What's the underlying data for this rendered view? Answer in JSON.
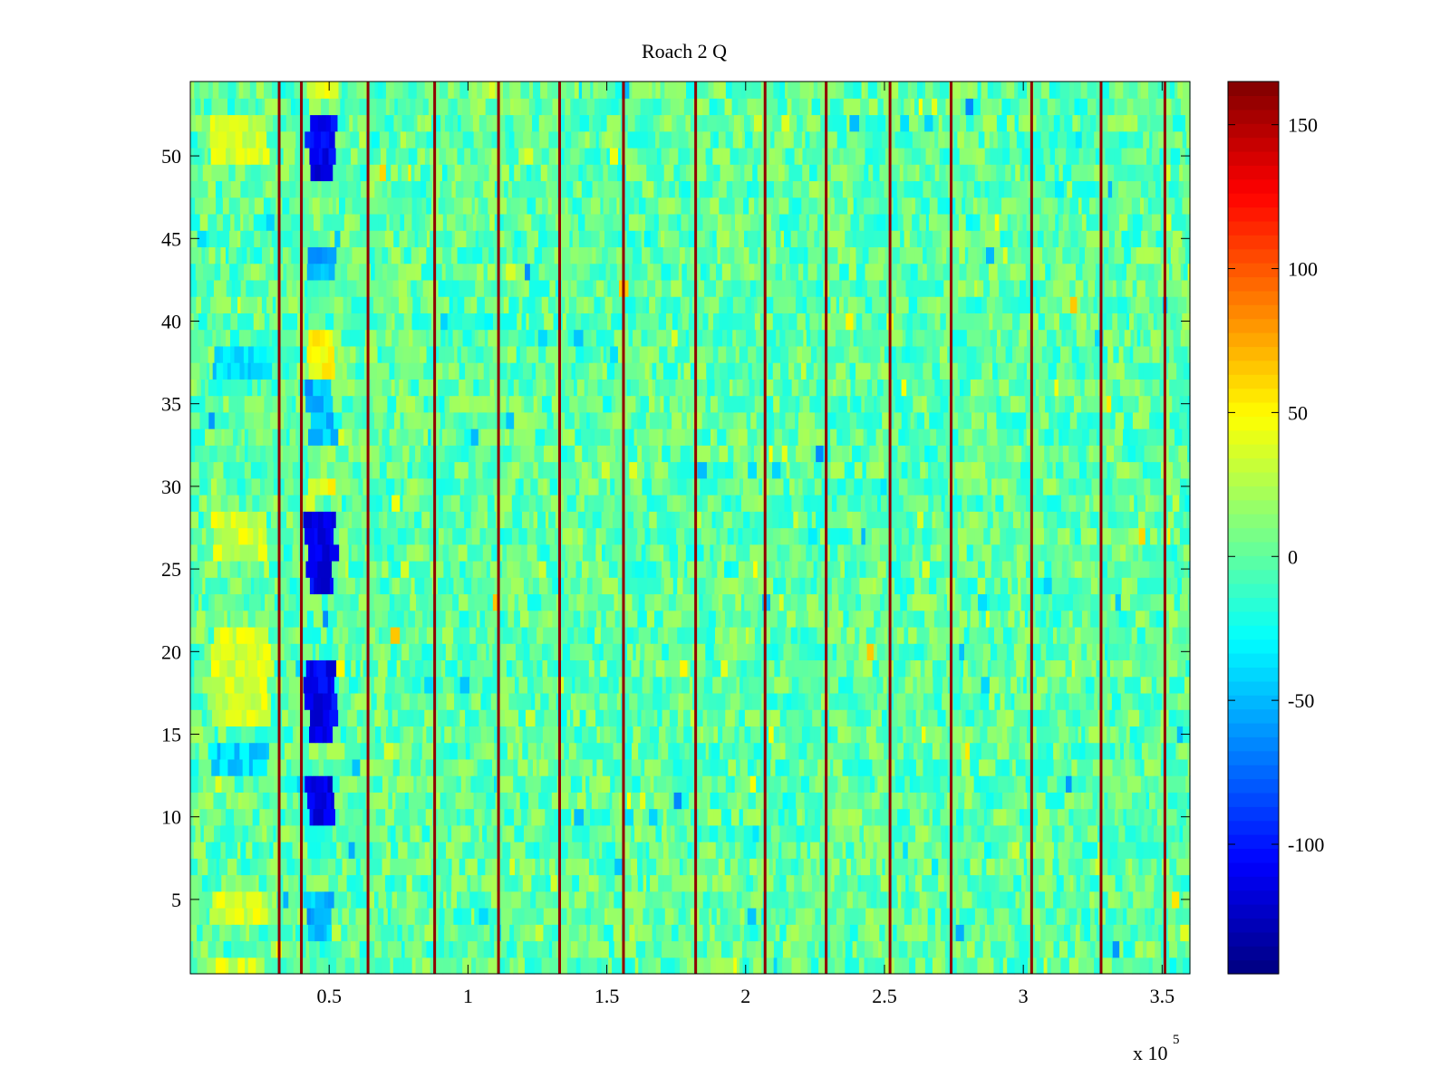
{
  "chart_data": {
    "type": "heatmap",
    "title": "Roach 2 Q",
    "xlabel": "",
    "ylabel": "",
    "x_exponent_label": "x 10",
    "x_exponent_power": "5",
    "xlim": [
      0,
      3.6
    ],
    "ylim": [
      0.5,
      54.5
    ],
    "rows": 54,
    "x_ticks": [
      0.5,
      1,
      1.5,
      2,
      2.5,
      3,
      3.5
    ],
    "x_tick_labels": [
      "0.5",
      "1",
      "1.5",
      "2",
      "2.5",
      "3",
      "3.5"
    ],
    "y_ticks": [
      5,
      10,
      15,
      20,
      25,
      30,
      35,
      40,
      45,
      50
    ],
    "y_tick_labels": [
      "5",
      "10",
      "15",
      "20",
      "25",
      "30",
      "35",
      "40",
      "45",
      "50"
    ],
    "colorbar": {
      "colormap": "jet",
      "clim": [
        -145,
        165
      ],
      "ticks": [
        150,
        100,
        50,
        0,
        -50,
        -100
      ],
      "tick_labels": [
        "150",
        "100",
        "50",
        "0",
        "-50",
        "-100"
      ]
    },
    "background_value": 0,
    "vertical_lines_x": [
      0.32,
      0.4,
      0.64,
      0.88,
      1.11,
      1.33,
      1.56,
      1.82,
      2.07,
      2.29,
      2.52,
      2.74,
      3.03,
      3.28,
      3.51
    ],
    "vertical_lines_value": 160,
    "features": [
      {
        "x_range": [
          0.08,
          0.28
        ],
        "rows": [
          1,
          4,
          5,
          16,
          17,
          18,
          19,
          20,
          21,
          26,
          27,
          28,
          50,
          51,
          52
        ],
        "value": 35
      },
      {
        "x_range": [
          0.08,
          0.28
        ],
        "rows": [
          13,
          14,
          37,
          38
        ],
        "value": -40
      },
      {
        "x_range": [
          0.42,
          0.52
        ],
        "rows": [
          10,
          11,
          12,
          15,
          16,
          17,
          18,
          19,
          24,
          25,
          26,
          27,
          28,
          49,
          50,
          51,
          52
        ],
        "value": -110
      },
      {
        "x_range": [
          0.42,
          0.52
        ],
        "rows": [
          3,
          4,
          5,
          33,
          34,
          35,
          36,
          43,
          44
        ],
        "value": -50
      },
      {
        "x_range": [
          0.42,
          0.52
        ],
        "rows": [
          30,
          37,
          38,
          39,
          54
        ],
        "value": 45
      }
    ]
  }
}
